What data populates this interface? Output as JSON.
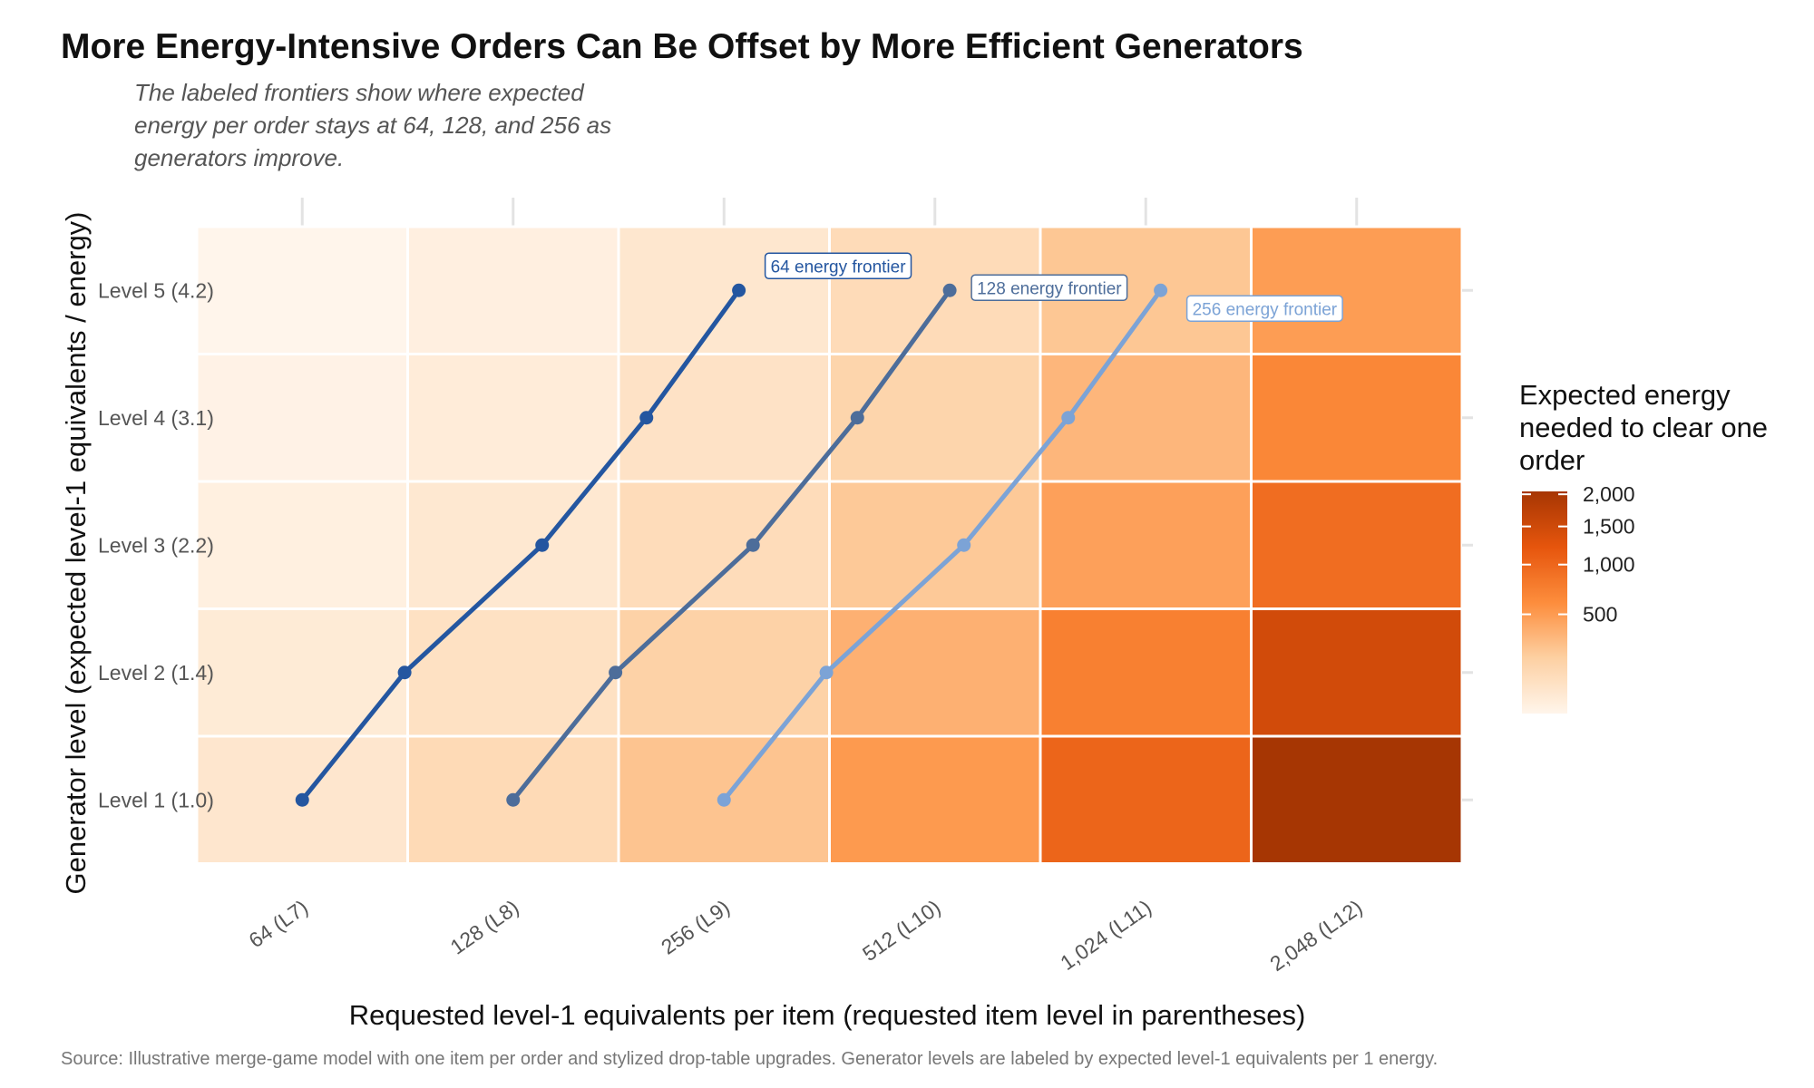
{
  "title": "More Energy-Intensive Orders Can Be Offset by More Efficient Generators",
  "subtitle": "The labeled frontiers show where expected energy per order stays at 64, 128, and 256 as generators improve.",
  "caption": "Source: Illustrative merge-game model with one item per order and stylized drop-table upgrades. Generator levels are labeled by expected level-1 equivalents per 1 energy.",
  "chart_data": {
    "type": "heatmap",
    "xlabel": "Requested level-1 equivalents per item (requested item level in parentheses)",
    "ylabel": "Generator level (expected level-1 equivalents / energy)",
    "x": [
      64,
      128,
      256,
      512,
      1024,
      2048
    ],
    "x_tick_labels": [
      "64 (L7)",
      "128 (L8)",
      "256 (L9)",
      "512 (L10)",
      "1,024 (L11)",
      "2,048 (L12)"
    ],
    "y": [
      1.0,
      1.4,
      2.2,
      3.1,
      4.2
    ],
    "y_tick_labels": [
      "Level 1 (1.0)",
      "Level 2 (1.4)",
      "Level 3 (2.2)",
      "Level 4 (3.1)",
      "Level 5 (4.2)"
    ],
    "x_scale": "log2",
    "heatmap_values": [
      [
        64,
        128,
        256,
        512,
        1024,
        2048
      ],
      [
        46,
        91,
        183,
        366,
        731,
        1463
      ],
      [
        29,
        58,
        116,
        233,
        465,
        931
      ],
      [
        21,
        41,
        83,
        165,
        330,
        661
      ],
      [
        15,
        30,
        61,
        122,
        244,
        488
      ]
    ],
    "legend": {
      "title": "Expected energy needed to clear one order",
      "breaks": [
        500,
        1000,
        1500,
        2000
      ],
      "break_labels": [
        "500",
        "1,000",
        "1,500",
        "2,000"
      ],
      "range": [
        15,
        2048
      ],
      "scale": "sqrt",
      "colors": [
        "#fff5eb",
        "#fdd0a2",
        "#fd8d3c",
        "#e6550d",
        "#a63603"
      ]
    },
    "series": [
      {
        "name": "64 energy frontier",
        "color": "#2456a0",
        "points": [
          [
            64,
            1.0
          ],
          [
            89.6,
            1.4
          ],
          [
            140.8,
            2.2
          ],
          [
            198.4,
            3.1
          ],
          [
            268.8,
            4.2
          ]
        ]
      },
      {
        "name": "128 energy frontier",
        "color": "#4d6d9a",
        "points": [
          [
            128,
            1.0
          ],
          [
            179.2,
            1.4
          ],
          [
            281.6,
            2.2
          ],
          [
            396.8,
            3.1
          ],
          [
            537.6,
            4.2
          ]
        ]
      },
      {
        "name": "256 energy frontier",
        "color": "#7ca3d6",
        "points": [
          [
            256,
            1.0
          ],
          [
            358.4,
            1.4
          ],
          [
            563.2,
            2.2
          ],
          [
            793.6,
            3.1
          ],
          [
            1075.2,
            4.2
          ]
        ]
      }
    ]
  }
}
